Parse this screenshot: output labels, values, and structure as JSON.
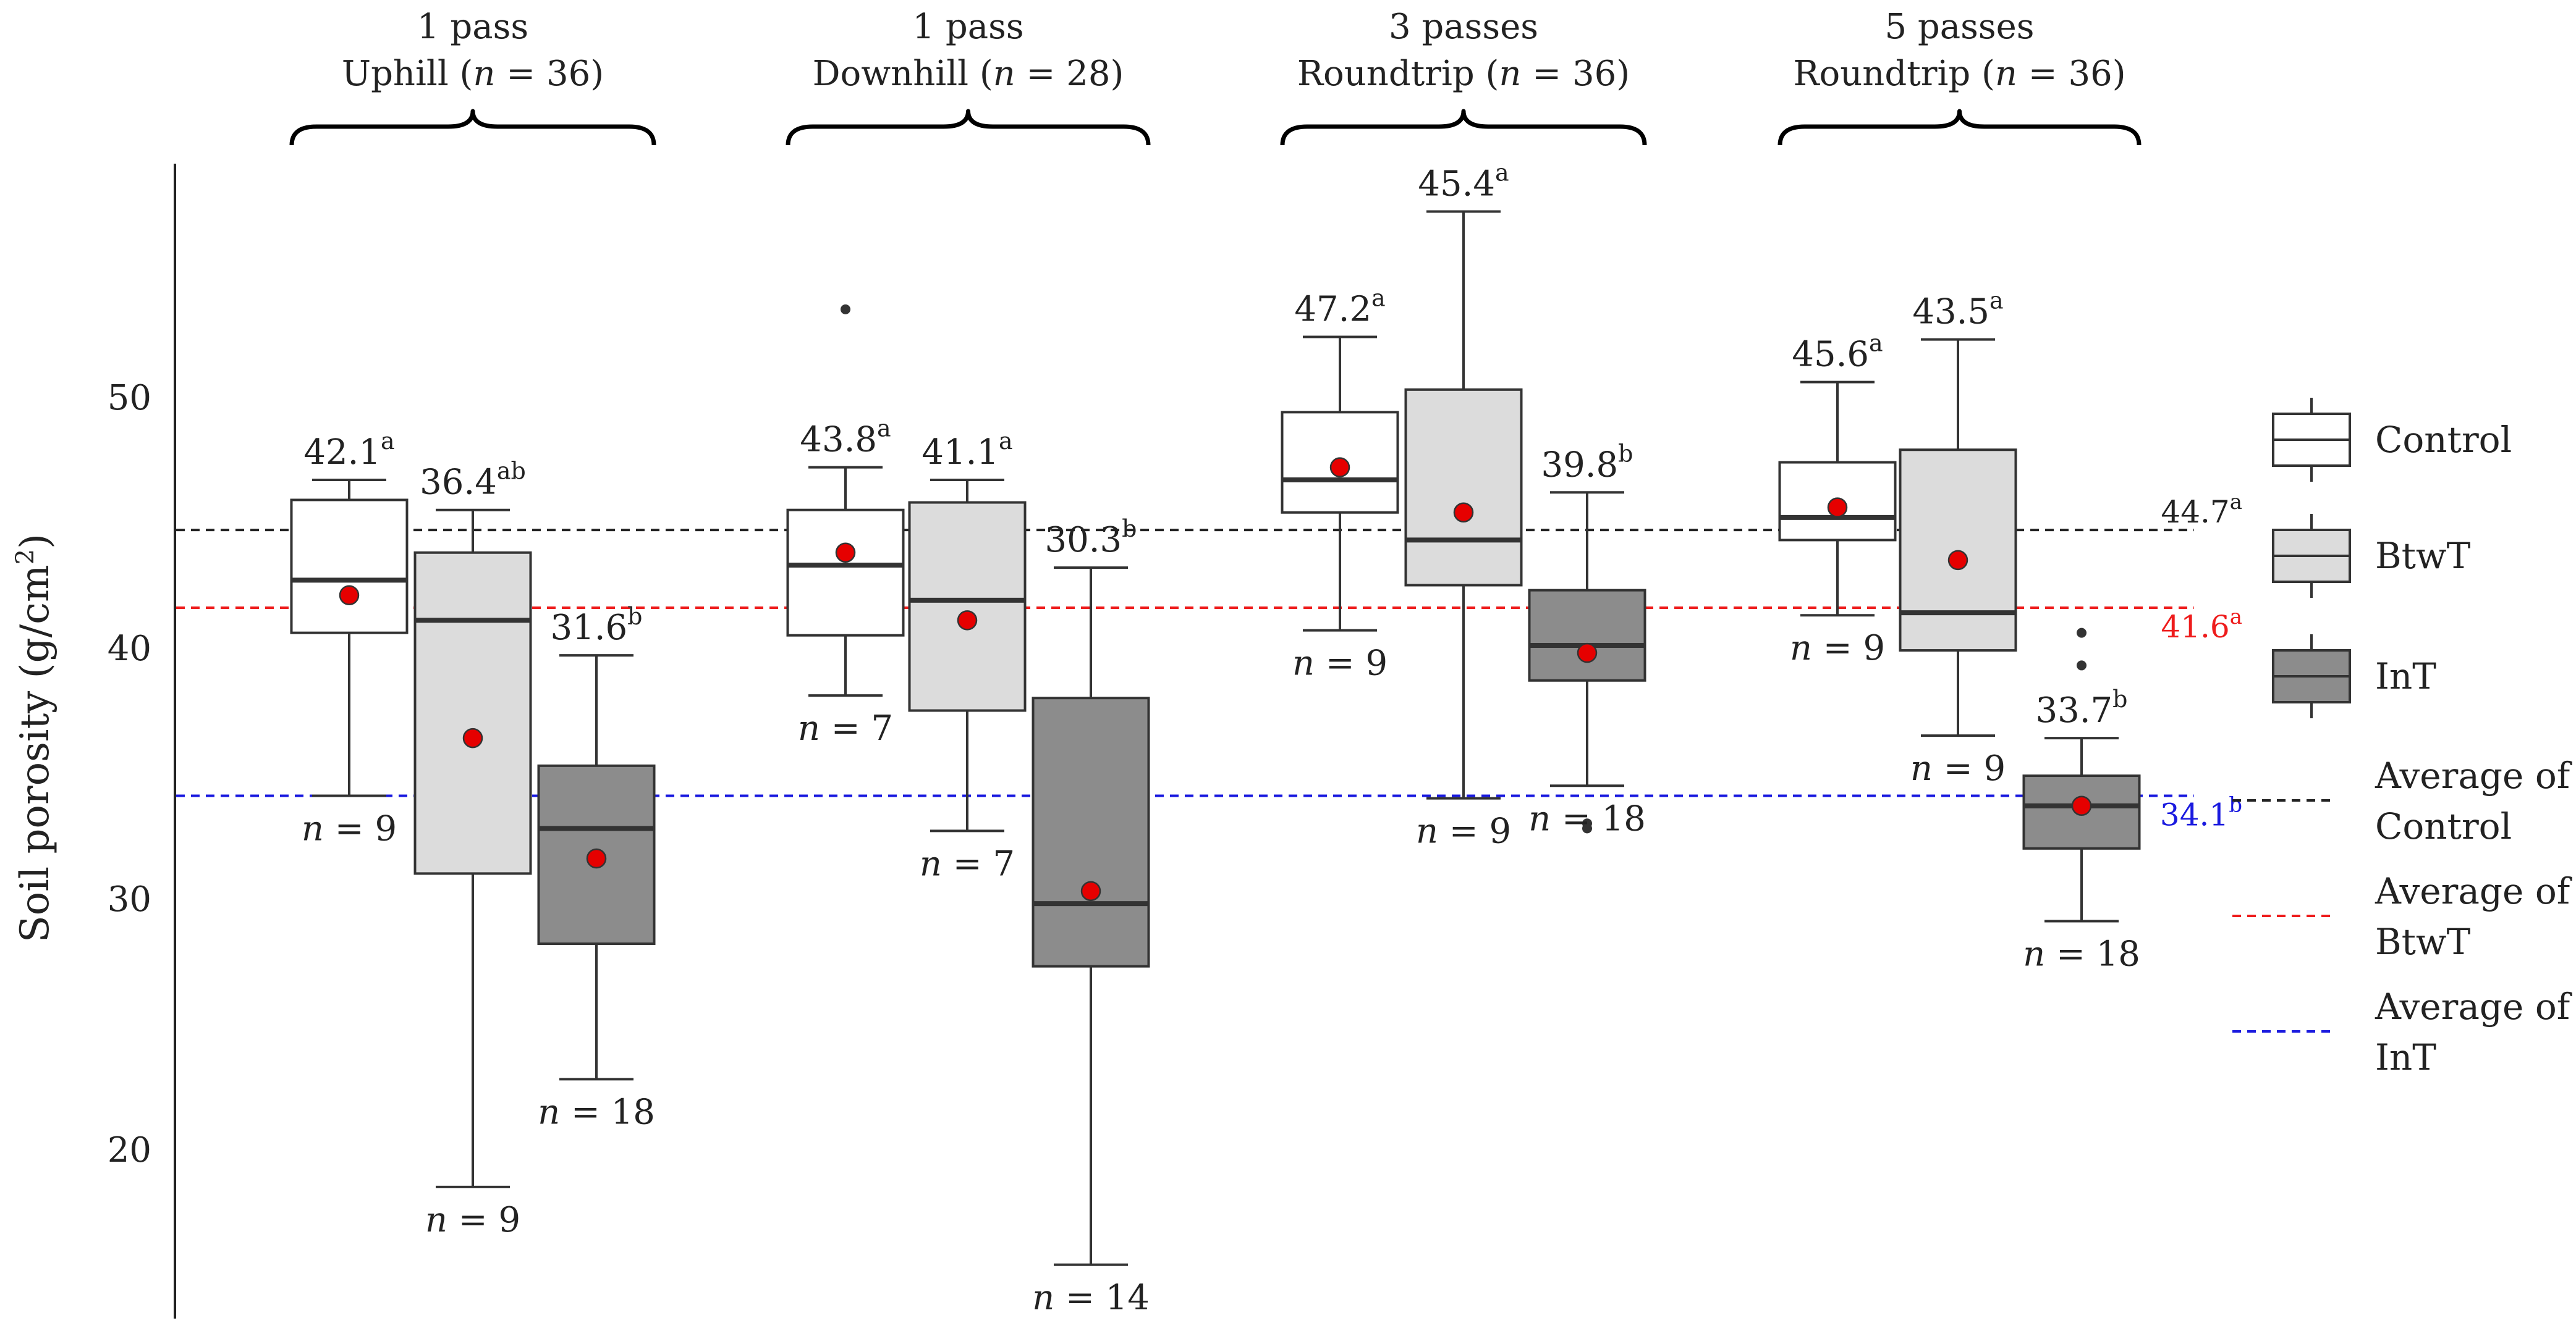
{
  "chart_data": {
    "type": "boxplot",
    "ylabel": "Soil porosity (g/cm²)",
    "ylabel_base": "Soil porosity (g/cm",
    "ylabel_sup": "2",
    "ylabel_end": ")",
    "ylim": [
      13,
      59
    ],
    "yticks": [
      20,
      30,
      40,
      50
    ],
    "groups": [
      {
        "line1": "1 pass",
        "line2_word": "Uphill",
        "line2_n": "n",
        "line2_rest": " = 36)",
        "boxes": [
          {
            "series": "Control",
            "whisker_low": 34.1,
            "q1": 40.6,
            "median": 42.7,
            "q3": 45.9,
            "whisker_high": 46.7,
            "mean": 42.1,
            "outliers": [],
            "mean_label": "42.1",
            "letter": "a",
            "n_label": "= 9"
          },
          {
            "series": "BtwT",
            "whisker_low": 18.5,
            "q1": 31.0,
            "median": 41.1,
            "q3": 43.8,
            "whisker_high": 45.5,
            "mean": 36.4,
            "outliers": [],
            "mean_label": "36.4",
            "letter": "ab",
            "n_label": "= 9"
          },
          {
            "series": "InT",
            "whisker_low": 22.8,
            "q1": 28.2,
            "median": 32.8,
            "q3": 35.3,
            "whisker_high": 39.7,
            "mean": 31.6,
            "outliers": [],
            "mean_label": "31.6",
            "letter": "b",
            "n_label": "= 18"
          }
        ]
      },
      {
        "line1": "1 pass",
        "line2_word": "Downhill",
        "line2_n": "n",
        "line2_rest": " = 28)",
        "boxes": [
          {
            "series": "Control",
            "whisker_low": 38.1,
            "q1": 40.5,
            "median": 43.3,
            "q3": 45.5,
            "whisker_high": 47.2,
            "mean": 43.8,
            "outliers": [
              53.5
            ],
            "mean_label": "43.8",
            "letter": "a",
            "n_label": "= 7"
          },
          {
            "series": "BtwT",
            "whisker_low": 32.7,
            "q1": 37.5,
            "median": 41.9,
            "q3": 45.8,
            "whisker_high": 46.7,
            "mean": 41.1,
            "outliers": [],
            "mean_label": "41.1",
            "letter": "a",
            "n_label": "= 7"
          },
          {
            "series": "InT",
            "whisker_low": 15.4,
            "q1": 27.3,
            "median": 29.8,
            "q3": 38.0,
            "whisker_high": 43.2,
            "mean": 30.3,
            "outliers": [],
            "mean_label": "30.3",
            "letter": "b",
            "n_label": "= 14"
          }
        ]
      },
      {
        "line1": "3 passes",
        "line2_word": "Roundtrip",
        "line2_n": "n",
        "line2_rest": " = 36)",
        "boxes": [
          {
            "series": "Control",
            "whisker_low": 40.7,
            "q1": 45.4,
            "median": 46.7,
            "q3": 49.4,
            "whisker_high": 52.4,
            "mean": 47.2,
            "outliers": [],
            "mean_label": "47.2",
            "letter": "a",
            "n_label": "= 9"
          },
          {
            "series": "BtwT",
            "whisker_low": 34.0,
            "q1": 42.5,
            "median": 44.3,
            "q3": 50.3,
            "whisker_high": 57.4,
            "mean": 45.4,
            "outliers": [],
            "mean_label": "45.4",
            "letter": "a",
            "n_label": "= 9"
          },
          {
            "series": "InT",
            "whisker_low": 34.5,
            "q1": 38.7,
            "median": 40.1,
            "q3": 42.3,
            "whisker_high": 46.2,
            "mean": 39.8,
            "outliers": [
              33.0,
              32.8
            ],
            "mean_label": "39.8",
            "letter": "b",
            "n_label": "= 18"
          }
        ]
      },
      {
        "line1": "5 passes",
        "line2_word": "Roundtrip",
        "line2_n": "n",
        "line2_rest": " = 36)",
        "boxes": [
          {
            "series": "Control",
            "whisker_low": 41.3,
            "q1": 44.3,
            "median": 45.2,
            "q3": 47.4,
            "whisker_high": 50.6,
            "mean": 45.6,
            "outliers": [],
            "mean_label": "45.6",
            "letter": "a",
            "n_label": "= 9"
          },
          {
            "series": "BtwT",
            "whisker_low": 36.5,
            "q1": 39.9,
            "median": 41.4,
            "q3": 47.9,
            "whisker_high": 52.3,
            "mean": 43.5,
            "outliers": [],
            "mean_label": "43.5",
            "letter": "a",
            "n_label": "= 9"
          },
          {
            "series": "InT",
            "whisker_low": 29.1,
            "q1": 32.0,
            "median": 33.7,
            "q3": 34.9,
            "whisker_high": 36.4,
            "mean": 33.7,
            "outliers": [
              40.6,
              39.3
            ],
            "mean_label": "33.7",
            "letter": "b",
            "n_label": "= 18"
          }
        ]
      }
    ],
    "averages": [
      {
        "series": "Control",
        "value": 44.7,
        "label": "44.7",
        "letter": "a",
        "color": "#222222",
        "text_color": "#222222"
      },
      {
        "series": "BtwT",
        "value": 41.6,
        "label": "41.6",
        "letter": "a",
        "color": "#ee1c1c",
        "text_color": "#ee1c1c"
      },
      {
        "series": "InT",
        "value": 34.1,
        "label": "34.1",
        "letter": "b",
        "color": "#1a1adf",
        "text_color": "#1a1adf"
      }
    ],
    "legend": {
      "position": "right",
      "box_items": [
        {
          "label": "Control",
          "fill": "#ffffff"
        },
        {
          "label": "BtwT",
          "fill": "#dcdcdc"
        },
        {
          "label": "InT",
          "fill": "#8c8c8c"
        }
      ],
      "line_items": [
        {
          "line1": "Average of",
          "line2": "Control",
          "color": "#222222"
        },
        {
          "line1": "Average of",
          "line2": "BtwT",
          "color": "#ee1c1c"
        },
        {
          "line1": "Average of",
          "line2": "InT",
          "color": "#1a1adf"
        }
      ]
    },
    "colors": {
      "Control": "#ffffff",
      "BtwT": "#dcdcdc",
      "InT": "#8c8c8c",
      "mean_marker": "#e60000",
      "stroke": "#333333"
    },
    "grid": false
  }
}
